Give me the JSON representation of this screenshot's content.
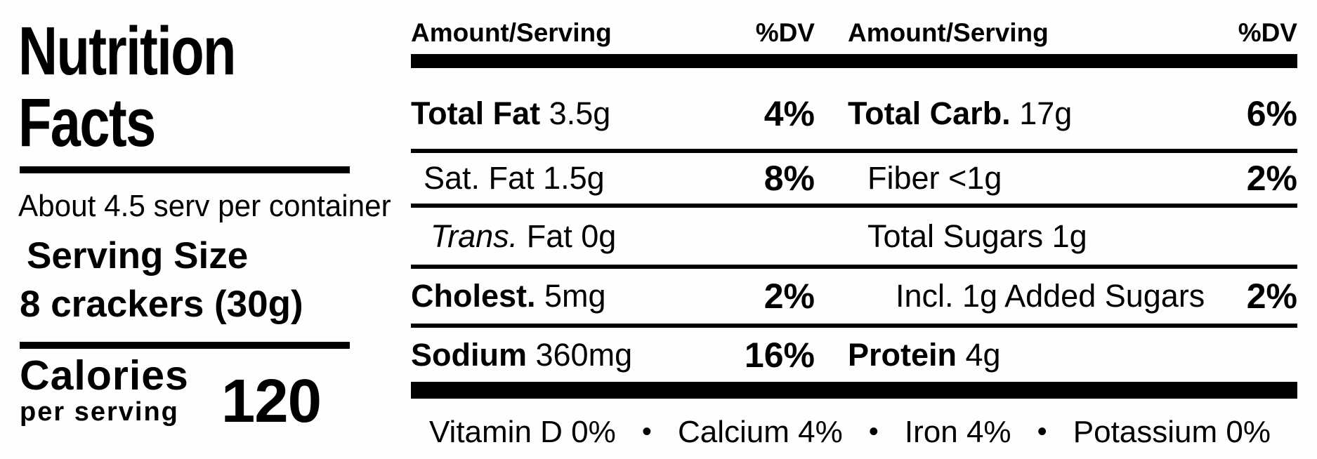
{
  "label": {
    "title_line1": "Nutrition",
    "title_line2": "Facts",
    "servings_per_container": "About 4.5 serv per container",
    "serving_size_label": "Serving Size",
    "serving_size_value": "8 crackers (30g)",
    "calories_label": "Calories",
    "calories_sublabel": "per serving",
    "calories_value": "120"
  },
  "table": {
    "header": {
      "amount_label": "Amount/Serving",
      "dv_label": "%DV"
    },
    "rows": [
      {
        "left": {
          "bold": "Total Fat",
          "italic": "",
          "rest": " 3.5g",
          "dv": "4%"
        },
        "right": {
          "bold": "Total Carb.",
          "italic": "",
          "rest": " 17g",
          "dv": "6%"
        }
      },
      {
        "left": {
          "bold": "",
          "italic": "",
          "rest": "Sat. Fat 1.5g",
          "dv": "8%"
        },
        "right": {
          "bold": "",
          "italic": "",
          "rest": "Fiber <1g",
          "dv": "2%"
        }
      },
      {
        "left": {
          "bold": "",
          "italic": "Trans.",
          "rest": " Fat 0g",
          "dv": ""
        },
        "right": {
          "bold": "",
          "italic": "",
          "rest": "Total Sugars 1g",
          "dv": ""
        }
      },
      {
        "left": {
          "bold": "Cholest.",
          "italic": "",
          "rest": " 5mg",
          "dv": "2%"
        },
        "right": {
          "bold": "",
          "italic": "",
          "rest": "Incl. 1g Added Sugars",
          "dv": "2%"
        }
      },
      {
        "left": {
          "bold": "Sodium",
          "italic": "",
          "rest": " 360mg",
          "dv": "16%"
        },
        "right": {
          "bold": "Protein",
          "italic": "",
          "rest": " 4g",
          "dv": ""
        }
      }
    ],
    "footer": {
      "separator": "•",
      "items": [
        "Vitamin D 0%",
        "Calcium 4%",
        "Iron 4%",
        "Potassium 0%"
      ]
    }
  },
  "colors": {
    "ink": "#000000",
    "background": "#fefefe"
  }
}
